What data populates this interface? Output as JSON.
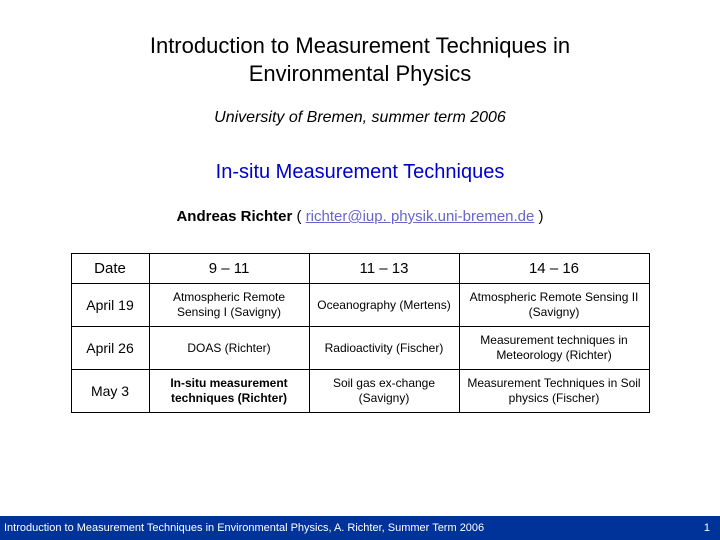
{
  "title_line1": "Introduction to Measurement Techniques in",
  "title_line2": "Environmental Physics",
  "subtitle": "University of Bremen, summer term 2006",
  "section_title": "In-situ Measurement Techniques",
  "author_name": "Andreas Richter",
  "author_open": " ( ",
  "author_email": "richter@iup. physik.uni-bremen.de",
  "author_close": " )",
  "table": {
    "headers": {
      "date": "Date",
      "c1": "9 – 11",
      "c2": "11 – 13",
      "c3": "14 – 16"
    },
    "rows": [
      {
        "date": "April 19",
        "c1": "Atmospheric Remote Sensing I (Savigny)",
        "c2": "Oceanography (Mertens)",
        "c3": "Atmospheric Remote Sensing II (Savigny)",
        "highlight": false
      },
      {
        "date": "April 26",
        "c1": "DOAS (Richter)",
        "c2": "Radioactivity (Fischer)",
        "c3": "Measurement techniques in Meteorology (Richter)",
        "highlight": false
      },
      {
        "date": "May 3",
        "c1": "In-situ measurement techniques (Richter)",
        "c2": "Soil gas ex-change (Savigny)",
        "c3": "Measurement Techniques in Soil physics (Fischer)",
        "highlight": true
      }
    ]
  },
  "footer_text": "Introduction to Measurement Techniques in Environmental Physics, A. Richter, Summer Term 2006",
  "footer_page": "1",
  "colors": {
    "title_color": "#000000",
    "section_color": "#0000cc",
    "link_color": "#6666cc",
    "footer_bg": "#003399",
    "footer_text": "#ffffff",
    "border": "#000000"
  }
}
